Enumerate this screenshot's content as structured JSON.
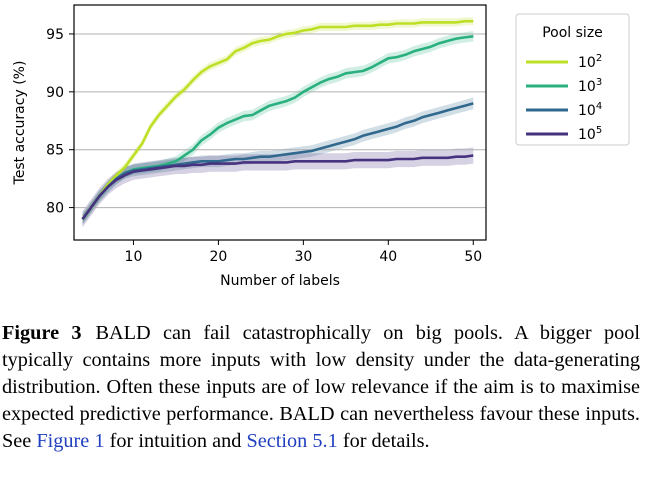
{
  "chart_data": {
    "type": "line",
    "xlabel": "Number of labels",
    "ylabel": "Test accuracy (%)",
    "xlim": [
      3,
      51.5
    ],
    "ylim": [
      77.2,
      97.5
    ],
    "x_ticks": [
      10,
      20,
      30,
      40,
      50
    ],
    "y_ticks": [
      80,
      85,
      90,
      95
    ],
    "grid": "horizontal",
    "legend": {
      "title": "Pool size",
      "placement": "top-right",
      "entries": [
        "10^2",
        "10^3",
        "10^4",
        "10^5"
      ]
    },
    "series": [
      {
        "name": "10^2",
        "base": "10",
        "exponent": "2",
        "color": "#bddf26",
        "band": 0.35,
        "x": [
          4,
          5,
          6,
          7,
          8,
          9,
          10,
          11,
          12,
          13,
          14,
          15,
          16,
          17,
          18,
          19,
          20,
          21,
          22,
          23,
          24,
          25,
          26,
          27,
          28,
          29,
          30,
          31,
          32,
          33,
          34,
          35,
          36,
          37,
          38,
          39,
          40,
          41,
          42,
          43,
          44,
          45,
          46,
          47,
          48,
          49,
          50
        ],
        "values": [
          79,
          80,
          81,
          82,
          82.8,
          83.5,
          84.5,
          85.5,
          87,
          88,
          88.8,
          89.6,
          90.2,
          91,
          91.7,
          92.2,
          92.5,
          92.8,
          93.5,
          93.8,
          94.2,
          94.4,
          94.5,
          94.8,
          95,
          95.1,
          95.3,
          95.4,
          95.6,
          95.6,
          95.6,
          95.6,
          95.7,
          95.7,
          95.7,
          95.8,
          95.8,
          95.9,
          95.9,
          95.9,
          96,
          96,
          96,
          96,
          96,
          96.1,
          96.1
        ]
      },
      {
        "name": "10^3",
        "base": "10",
        "exponent": "3",
        "color": "#2ab07f",
        "band": 0.45,
        "x": [
          4,
          5,
          6,
          7,
          8,
          9,
          10,
          11,
          12,
          13,
          14,
          15,
          16,
          17,
          18,
          19,
          20,
          21,
          22,
          23,
          24,
          25,
          26,
          27,
          28,
          29,
          30,
          31,
          32,
          33,
          34,
          35,
          36,
          37,
          38,
          39,
          40,
          41,
          42,
          43,
          44,
          45,
          46,
          47,
          48,
          49,
          50
        ],
        "values": [
          79,
          80,
          81,
          81.8,
          82.5,
          83,
          83.3,
          83.4,
          83.5,
          83.6,
          83.8,
          84,
          84.5,
          85,
          85.8,
          86.3,
          86.9,
          87.3,
          87.6,
          87.9,
          88,
          88.4,
          88.8,
          89,
          89.2,
          89.5,
          90,
          90.4,
          90.8,
          91.1,
          91.3,
          91.6,
          91.7,
          91.8,
          92.1,
          92.5,
          92.9,
          93,
          93.2,
          93.5,
          93.7,
          93.9,
          94.2,
          94.4,
          94.6,
          94.7,
          94.8
        ]
      },
      {
        "name": "10^4",
        "base": "10",
        "exponent": "4",
        "color": "#31688e",
        "band": 0.5,
        "x": [
          4,
          5,
          6,
          7,
          8,
          9,
          10,
          11,
          12,
          13,
          14,
          15,
          16,
          17,
          18,
          19,
          20,
          21,
          22,
          23,
          24,
          25,
          26,
          27,
          28,
          29,
          30,
          31,
          32,
          33,
          34,
          35,
          36,
          37,
          38,
          39,
          40,
          41,
          42,
          43,
          44,
          45,
          46,
          47,
          48,
          49,
          50
        ],
        "values": [
          79,
          80,
          81,
          81.8,
          82.5,
          83,
          83.2,
          83.3,
          83.4,
          83.5,
          83.6,
          83.7,
          83.8,
          83.9,
          84,
          84,
          84,
          84.1,
          84.2,
          84.2,
          84.3,
          84.4,
          84.4,
          84.5,
          84.6,
          84.7,
          84.8,
          84.9,
          85.1,
          85.3,
          85.5,
          85.7,
          85.9,
          86.2,
          86.4,
          86.6,
          86.8,
          87,
          87.3,
          87.5,
          87.8,
          88,
          88.2,
          88.4,
          88.6,
          88.8,
          89
        ]
      },
      {
        "name": "10^5",
        "base": "10",
        "exponent": "5",
        "color": "#46327e",
        "band": 0.7,
        "x": [
          4,
          5,
          6,
          7,
          8,
          9,
          10,
          11,
          12,
          13,
          14,
          15,
          16,
          17,
          18,
          19,
          20,
          21,
          22,
          23,
          24,
          25,
          26,
          27,
          28,
          29,
          30,
          31,
          32,
          33,
          34,
          35,
          36,
          37,
          38,
          39,
          40,
          41,
          42,
          43,
          44,
          45,
          46,
          47,
          48,
          49,
          50
        ],
        "values": [
          79,
          80,
          81,
          81.8,
          82.4,
          82.8,
          83.1,
          83.2,
          83.3,
          83.4,
          83.5,
          83.6,
          83.6,
          83.7,
          83.7,
          83.8,
          83.8,
          83.8,
          83.8,
          83.9,
          83.9,
          83.9,
          83.9,
          83.9,
          83.9,
          84,
          84,
          84,
          84,
          84,
          84,
          84,
          84.1,
          84.1,
          84.1,
          84.1,
          84.1,
          84.2,
          84.2,
          84.2,
          84.3,
          84.3,
          84.3,
          84.3,
          84.4,
          84.4,
          84.5
        ]
      }
    ]
  },
  "caption": {
    "label": "Figure 3",
    "text_1": "BALD can fail catastrophically on big pools. A bigger pool typically contains more inputs with low density under the data-generating distribution. Often these inputs are of low rele­vance if the aim is to maximise expected predictive performance. BALD can nevertheless favour these inputs. See ",
    "ref_1": "Figure 1",
    "text_2": " for in­tuition and ",
    "ref_2": "Section 5.1",
    "text_3": " for details."
  }
}
